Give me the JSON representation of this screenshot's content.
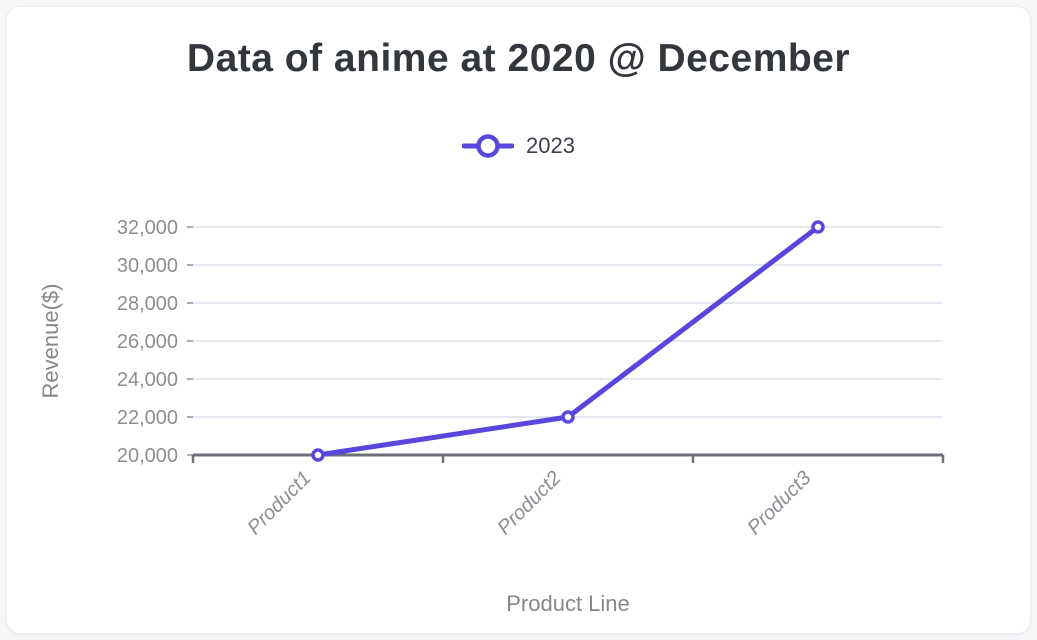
{
  "page": {
    "background": "#f5f6f8",
    "card_background": "#ffffff"
  },
  "title": "Data of anime at 2020 @ December",
  "legend": {
    "position": "top",
    "items": [
      {
        "label": "2023",
        "color": "#5a46dc",
        "marker": "hollow-circle-on-line"
      }
    ]
  },
  "chart_data": {
    "type": "line",
    "categories": [
      "Product1",
      "Product2",
      "Product3"
    ],
    "series": [
      {
        "name": "2023",
        "values": [
          20000,
          22000,
          32000
        ],
        "color": "#5a46dc"
      }
    ],
    "title": "Data of anime at 2020 @ December",
    "xlabel": "Product Line",
    "ylabel": "Revenue($)",
    "ylim": [
      20000,
      32000
    ],
    "ytick_step": 2000,
    "ytick_labels": [
      "20,000",
      "22,000",
      "24,000",
      "26,000",
      "28,000",
      "30,000",
      "32,000"
    ],
    "grid": true,
    "legend_position": "top",
    "marker": "hollow-circle",
    "x_tick_label_style": "italic, rotated -45deg"
  },
  "colors": {
    "accent": "#5a46dc",
    "grid_line": "#e5e7f0",
    "axis_line": "#6d7076",
    "tick_label": "#8d8e94",
    "axis_title": "#87888c",
    "point_fill": "#ffffff"
  }
}
